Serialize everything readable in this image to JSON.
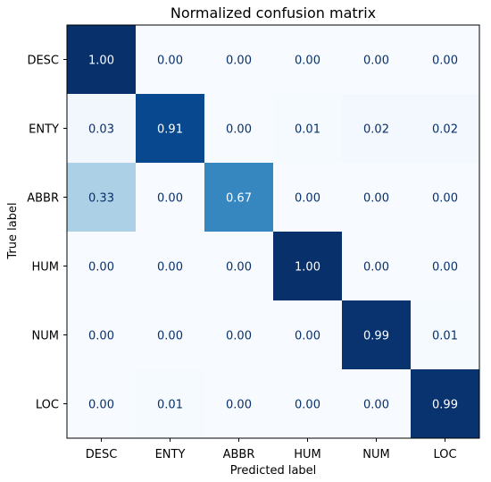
{
  "chart_data": {
    "type": "heatmap",
    "title": "Normalized confusion matrix",
    "xlabel": "Predicted label",
    "ylabel": "True label",
    "x_categories": [
      "DESC",
      "ENTY",
      "ABBR",
      "HUM",
      "NUM",
      "LOC"
    ],
    "y_categories": [
      "DESC",
      "ENTY",
      "ABBR",
      "HUM",
      "NUM",
      "LOC"
    ],
    "values": [
      [
        1.0,
        0.0,
        0.0,
        0.0,
        0.0,
        0.0
      ],
      [
        0.03,
        0.91,
        0.0,
        0.01,
        0.02,
        0.02
      ],
      [
        0.33,
        0.0,
        0.67,
        0.0,
        0.0,
        0.0
      ],
      [
        0.0,
        0.0,
        0.0,
        1.0,
        0.0,
        0.0
      ],
      [
        0.0,
        0.0,
        0.0,
        0.0,
        0.99,
        0.01
      ],
      [
        0.0,
        0.01,
        0.0,
        0.0,
        0.0,
        0.99
      ]
    ],
    "value_format": "0.00",
    "color_scale": "Blues",
    "value_range": [
      0,
      1
    ],
    "colors": {
      "low": "#f7fbff",
      "high": "#08306b",
      "text_dark": "#08306b",
      "text_light": "#ffffff"
    },
    "grid": false,
    "legend": "none"
  }
}
